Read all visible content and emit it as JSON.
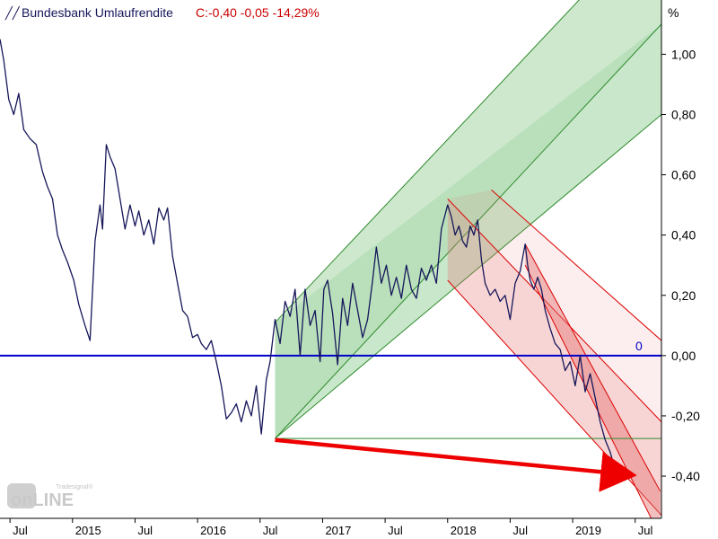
{
  "legend": {
    "series_name": "Bundesbank Umlaufrendite",
    "stats": "C:-0,40 -0,05 -14,29%"
  },
  "watermark": {
    "text_small": "Tradesignal®",
    "text_big": "onLINE"
  },
  "colors": {
    "line": "#16165a",
    "zero_line": "#0000cc",
    "green_fill": "#4caf50",
    "green_stroke": "#2e8b2e",
    "red_fill": "#e57373",
    "red_stroke": "#dd0000",
    "arrow": "#ee0000",
    "stats_text": "#cc0000"
  },
  "chart_data": {
    "type": "line",
    "title": "Bundesbank Umlaufrendite",
    "y_unit": "%",
    "ylim": [
      -0.54,
      1.18
    ],
    "xlim": [
      2014.42,
      2019.71
    ],
    "grid": false,
    "y_ticks": [
      {
        "value": 1.0,
        "label": "1,00"
      },
      {
        "value": 0.8,
        "label": "0,80"
      },
      {
        "value": 0.6,
        "label": "0,60"
      },
      {
        "value": 0.4,
        "label": "0,40"
      },
      {
        "value": 0.2,
        "label": "0,20"
      },
      {
        "value": 0.0,
        "label": "0,00"
      },
      {
        "value": -0.2,
        "label": "-0,20"
      },
      {
        "value": -0.4,
        "label": "-0,40"
      }
    ],
    "x_ticks": [
      {
        "t": 2014.5,
        "label": "Jul"
      },
      {
        "t": 2015.0,
        "label": "2015"
      },
      {
        "t": 2015.5,
        "label": "Jul"
      },
      {
        "t": 2016.0,
        "label": "2016"
      },
      {
        "t": 2016.5,
        "label": "Jul"
      },
      {
        "t": 2017.0,
        "label": "2017"
      },
      {
        "t": 2017.5,
        "label": "Jul"
      },
      {
        "t": 2018.0,
        "label": "2018"
      },
      {
        "t": 2018.5,
        "label": "Jul"
      },
      {
        "t": 2019.0,
        "label": "2019"
      },
      {
        "t": 2019.5,
        "label": "Jul"
      }
    ],
    "series": [
      {
        "name": "Bundesbank Umlaufrendite",
        "points": [
          [
            2014.42,
            1.05
          ],
          [
            2014.45,
            0.98
          ],
          [
            2014.49,
            0.85
          ],
          [
            2014.53,
            0.8
          ],
          [
            2014.57,
            0.87
          ],
          [
            2014.61,
            0.75
          ],
          [
            2014.66,
            0.72
          ],
          [
            2014.71,
            0.7
          ],
          [
            2014.76,
            0.61
          ],
          [
            2014.8,
            0.56
          ],
          [
            2014.84,
            0.52
          ],
          [
            2014.88,
            0.4
          ],
          [
            2014.92,
            0.35
          ],
          [
            2014.96,
            0.31
          ],
          [
            2015.01,
            0.25
          ],
          [
            2015.05,
            0.17
          ],
          [
            2015.1,
            0.1
          ],
          [
            2015.14,
            0.05
          ],
          [
            2015.18,
            0.38
          ],
          [
            2015.22,
            0.5
          ],
          [
            2015.24,
            0.42
          ],
          [
            2015.27,
            0.7
          ],
          [
            2015.3,
            0.66
          ],
          [
            2015.34,
            0.62
          ],
          [
            2015.38,
            0.52
          ],
          [
            2015.42,
            0.42
          ],
          [
            2015.46,
            0.5
          ],
          [
            2015.5,
            0.43
          ],
          [
            2015.53,
            0.48
          ],
          [
            2015.57,
            0.4
          ],
          [
            2015.61,
            0.45
          ],
          [
            2015.65,
            0.37
          ],
          [
            2015.69,
            0.49
          ],
          [
            2015.73,
            0.45
          ],
          [
            2015.76,
            0.49
          ],
          [
            2015.8,
            0.33
          ],
          [
            2015.84,
            0.24
          ],
          [
            2015.88,
            0.15
          ],
          [
            2015.92,
            0.13
          ],
          [
            2015.96,
            0.06
          ],
          [
            2016.0,
            0.07
          ],
          [
            2016.03,
            0.04
          ],
          [
            2016.07,
            0.02
          ],
          [
            2016.11,
            0.05
          ],
          [
            2016.15,
            -0.02
          ],
          [
            2016.19,
            -0.1
          ],
          [
            2016.23,
            -0.21
          ],
          [
            2016.27,
            -0.19
          ],
          [
            2016.31,
            -0.16
          ],
          [
            2016.35,
            -0.22
          ],
          [
            2016.39,
            -0.15
          ],
          [
            2016.43,
            -0.2
          ],
          [
            2016.47,
            -0.1
          ],
          [
            2016.51,
            -0.26
          ],
          [
            2016.55,
            -0.08
          ],
          [
            2016.58,
            -0.02
          ],
          [
            2016.62,
            0.12
          ],
          [
            2016.66,
            0.04
          ],
          [
            2016.7,
            0.18
          ],
          [
            2016.74,
            0.13
          ],
          [
            2016.78,
            0.22
          ],
          [
            2016.82,
            0.0
          ],
          [
            2016.86,
            0.22
          ],
          [
            2016.9,
            0.1
          ],
          [
            2016.94,
            0.15
          ],
          [
            2016.98,
            -0.02
          ],
          [
            2017.01,
            0.22
          ],
          [
            2017.04,
            0.25
          ],
          [
            2017.08,
            0.14
          ],
          [
            2017.12,
            -0.03
          ],
          [
            2017.16,
            0.19
          ],
          [
            2017.2,
            0.1
          ],
          [
            2017.24,
            0.24
          ],
          [
            2017.28,
            0.15
          ],
          [
            2017.32,
            0.06
          ],
          [
            2017.36,
            0.12
          ],
          [
            2017.4,
            0.25
          ],
          [
            2017.43,
            0.36
          ],
          [
            2017.47,
            0.24
          ],
          [
            2017.51,
            0.3
          ],
          [
            2017.55,
            0.2
          ],
          [
            2017.59,
            0.26
          ],
          [
            2017.63,
            0.19
          ],
          [
            2017.67,
            0.3
          ],
          [
            2017.71,
            0.22
          ],
          [
            2017.75,
            0.19
          ],
          [
            2017.79,
            0.29
          ],
          [
            2017.83,
            0.25
          ],
          [
            2017.87,
            0.3
          ],
          [
            2017.91,
            0.24
          ],
          [
            2017.95,
            0.42
          ],
          [
            2018.0,
            0.5
          ],
          [
            2018.03,
            0.46
          ],
          [
            2018.06,
            0.4
          ],
          [
            2018.09,
            0.43
          ],
          [
            2018.12,
            0.38
          ],
          [
            2018.15,
            0.36
          ],
          [
            2018.18,
            0.43
          ],
          [
            2018.21,
            0.4
          ],
          [
            2018.24,
            0.45
          ],
          [
            2018.27,
            0.32
          ],
          [
            2018.3,
            0.24
          ],
          [
            2018.34,
            0.2
          ],
          [
            2018.38,
            0.22
          ],
          [
            2018.42,
            0.18
          ],
          [
            2018.46,
            0.2
          ],
          [
            2018.5,
            0.12
          ],
          [
            2018.54,
            0.24
          ],
          [
            2018.58,
            0.28
          ],
          [
            2018.62,
            0.37
          ],
          [
            2018.64,
            0.3
          ],
          [
            2018.66,
            0.25
          ],
          [
            2018.69,
            0.22
          ],
          [
            2018.72,
            0.26
          ],
          [
            2018.75,
            0.22
          ],
          [
            2018.78,
            0.15
          ],
          [
            2018.82,
            0.09
          ],
          [
            2018.86,
            0.04
          ],
          [
            2018.9,
            0.02
          ],
          [
            2018.94,
            -0.05
          ],
          [
            2018.98,
            -0.02
          ],
          [
            2019.02,
            -0.1
          ],
          [
            2019.06,
            0.0
          ],
          [
            2019.1,
            -0.12
          ],
          [
            2019.14,
            -0.06
          ],
          [
            2019.18,
            -0.14
          ],
          [
            2019.22,
            -0.22
          ],
          [
            2019.26,
            -0.28
          ],
          [
            2019.3,
            -0.32
          ],
          [
            2019.34,
            -0.38
          ],
          [
            2019.37,
            -0.4
          ]
        ]
      }
    ],
    "reference_lines": [
      {
        "name": "zero-line",
        "value": 0.0,
        "label": "0"
      },
      {
        "name": "support-line",
        "value": -0.275,
        "t_start": 2016.62
      }
    ],
    "trend_channels": [
      {
        "name": "green-uptrend-channel",
        "color": "green",
        "base": [
          [
            2016.62,
            -0.275
          ],
          [
            2019.71,
            0.8
          ]
        ],
        "lines": [
          [
            [
              2016.62,
              0.11
            ],
            [
              2019.71,
              1.47
            ]
          ],
          [
            [
              2016.62,
              -0.275
            ],
            [
              2019.71,
              1.1
            ]
          ],
          [
            [
              2016.62,
              -0.275
            ],
            [
              2019.71,
              0.8
            ]
          ]
        ]
      },
      {
        "name": "red-downtrend-channel-wide",
        "color": "red",
        "lines": [
          [
            [
              2018.0,
              0.52
            ],
            [
              2019.71,
              -0.22
            ]
          ],
          [
            [
              2018.0,
              0.25
            ],
            [
              2019.71,
              -0.53
            ]
          ],
          [
            [
              2018.35,
              0.55
            ],
            [
              2019.71,
              0.05
            ]
          ]
        ]
      },
      {
        "name": "red-downtrend-channel-steep",
        "color": "red",
        "lines": [
          [
            [
              2018.62,
              0.37
            ],
            [
              2019.7,
              -0.45
            ]
          ],
          [
            [
              2018.62,
              0.3
            ],
            [
              2019.7,
              -0.6
            ]
          ]
        ]
      }
    ],
    "annotations": [
      {
        "name": "red-arrow",
        "from": [
          2016.62,
          -0.28
        ],
        "to": [
          2019.45,
          -0.395
        ]
      }
    ]
  }
}
